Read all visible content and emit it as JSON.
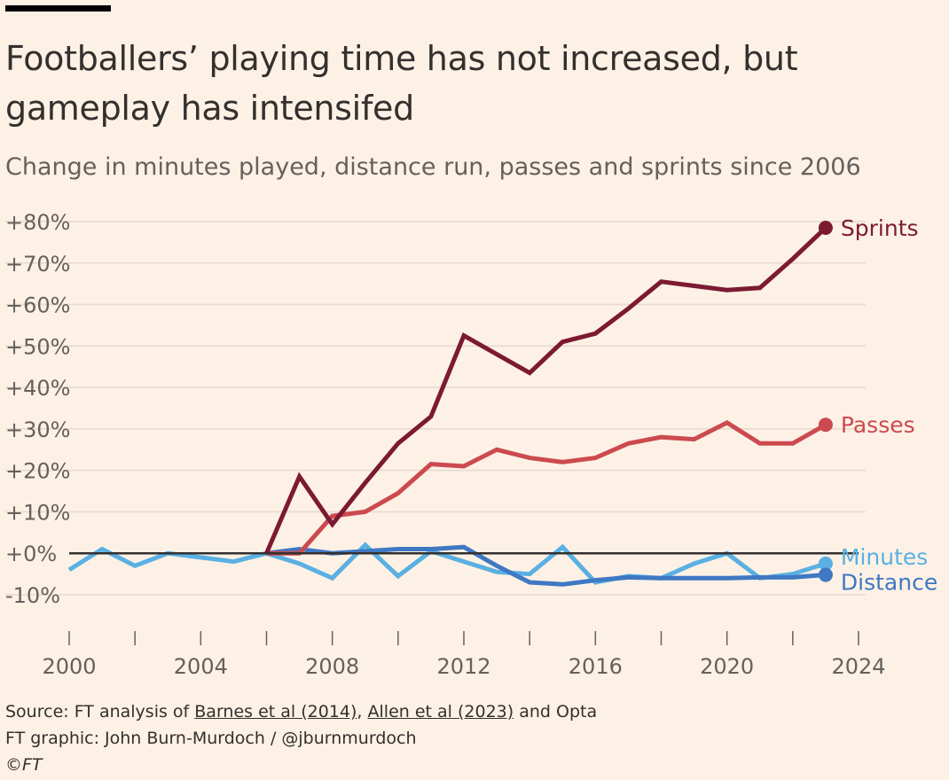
{
  "title": "Footballers’ playing time has not increased, but gameplay has intensifed",
  "subtitle": "Change in minutes played, distance run, passes and sprints since 2006",
  "footer": {
    "source_prefix": "Source: FT analysis of ",
    "source_link1": "Barnes et al (2014)",
    "source_sep": ", ",
    "source_link2": "Allen et al (2023)",
    "source_suffix": " and Opta",
    "credit": "FT graphic: John Burn-Murdoch / @jburnmurdoch",
    "copyright": "©FT"
  },
  "chart_data": {
    "type": "line",
    "title": "Footballers’ playing time has not increased, but gameplay has intensifed",
    "subtitle": "Change in minutes played, distance run, passes and sprints since 2006",
    "xlabel": "",
    "ylabel": "",
    "xlim": [
      2000,
      2024
    ],
    "ylim": [
      -10,
      80
    ],
    "x_ticks": [
      2000,
      2004,
      2008,
      2012,
      2016,
      2020,
      2024
    ],
    "y_ticks": [
      {
        "value": 80,
        "label": "+80%"
      },
      {
        "value": 70,
        "label": "+70%"
      },
      {
        "value": 60,
        "label": "+60%"
      },
      {
        "value": 50,
        "label": "+50%"
      },
      {
        "value": 40,
        "label": "+40%"
      },
      {
        "value": 30,
        "label": "+30%"
      },
      {
        "value": 20,
        "label": "+20%"
      },
      {
        "value": 10,
        "label": "+10%"
      },
      {
        "value": 0,
        "label": "+0%"
      },
      {
        "value": -10,
        "label": "-10%"
      }
    ],
    "grid": true,
    "series": [
      {
        "name": "Minutes",
        "color": "#5ab0e2",
        "x": [
          2000,
          2001,
          2002,
          2003,
          2004,
          2005,
          2006,
          2007,
          2008,
          2009,
          2010,
          2011,
          2012,
          2013,
          2014,
          2015,
          2016,
          2017,
          2018,
          2019,
          2020,
          2021,
          2022,
          2023
        ],
        "values": [
          -4,
          1,
          -3,
          0,
          -1,
          -2,
          0,
          -2.5,
          -6,
          2,
          -5.5,
          0.5,
          -2,
          -4.5,
          -5,
          1.5,
          -7,
          -5.5,
          -6,
          -2.5,
          0,
          -6,
          -5,
          -2.5
        ]
      },
      {
        "name": "Distance",
        "color": "#3f78c3",
        "x": [
          2006,
          2007,
          2008,
          2009,
          2010,
          2011,
          2012,
          2013,
          2014,
          2015,
          2016,
          2017,
          2018,
          2019,
          2020,
          2021,
          2022,
          2023
        ],
        "values": [
          0,
          1,
          0,
          0.5,
          1,
          1,
          1.5,
          -3,
          -7,
          -7.5,
          -6.5,
          -5.8,
          -6,
          -6,
          -6,
          -5.8,
          -5.8,
          -5.2
        ]
      },
      {
        "name": "Passes",
        "color": "#cc4a4f",
        "x": [
          2006,
          2007,
          2008,
          2009,
          2010,
          2011,
          2012,
          2013,
          2014,
          2015,
          2016,
          2017,
          2018,
          2019,
          2020,
          2021,
          2022,
          2023
        ],
        "values": [
          0,
          0,
          9,
          10,
          14.5,
          21.5,
          21,
          25,
          23,
          22,
          23,
          26.5,
          28,
          27.5,
          31.5,
          26.5,
          26.5,
          31
        ]
      },
      {
        "name": "Sprints",
        "color": "#7c1a32",
        "x": [
          2006,
          2007,
          2008,
          2009,
          2010,
          2011,
          2012,
          2013,
          2014,
          2015,
          2016,
          2017,
          2018,
          2019,
          2020,
          2021,
          2022,
          2023
        ],
        "values": [
          0,
          18.5,
          7,
          17,
          26.5,
          33,
          52.5,
          48,
          43.5,
          51,
          53,
          59,
          65.5,
          64.5,
          63.5,
          64,
          71,
          78.5
        ]
      }
    ]
  }
}
